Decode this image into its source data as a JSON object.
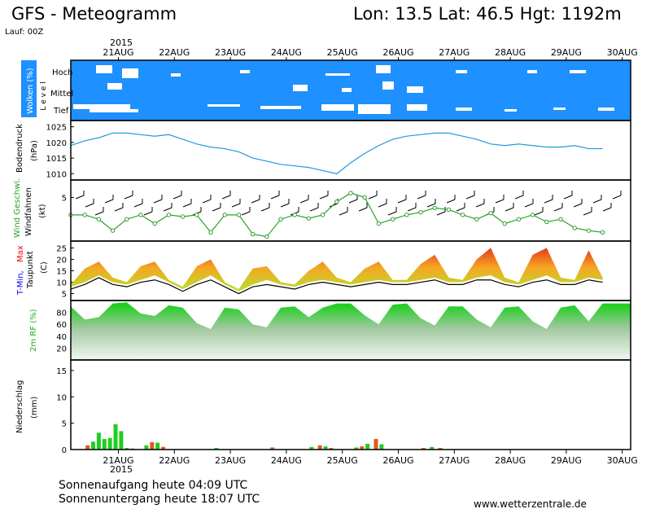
{
  "header": {
    "title": "GFS - Meteogramm",
    "location": "Lon: 13.5  Lat: 46.5  Hgt: 1192m",
    "run": "Lauf: 00Z"
  },
  "timeline": {
    "year": "2015",
    "dates": [
      "21AUG",
      "22AUG",
      "23AUG",
      "24AUG",
      "25AUG",
      "26AUG",
      "27AUG",
      "28AUG",
      "29AUG",
      "30AUG"
    ]
  },
  "panels": {
    "clouds": {
      "ylabel": "Wolken (%)",
      "level_word": "L e v e l",
      "levels": [
        "Hoch",
        "Mittel",
        "Tief"
      ],
      "color": "#1e90ff"
    },
    "pressure": {
      "ylabel1": "Bodendruck",
      "ylabel2": "(hPa)",
      "ticks": [
        "1025",
        "1020",
        "1015",
        "1010"
      ],
      "color": "#1e9bd8"
    },
    "wind": {
      "ylabel_a": "Wind Geschwi.",
      "ylabel_b": "Windfahnen",
      "ylabel_c": "(kt)",
      "ticks": [
        "5"
      ],
      "color": "#2ca02c"
    },
    "temp": {
      "ylabel_min": "T-Min,",
      "ylabel_max": "Max",
      "ylabel_b": "Taupunkt",
      "ylabel_c": "(C)",
      "ticks": [
        "25",
        "20",
        "15",
        "10",
        "5"
      ]
    },
    "rh": {
      "ylabel": "2m RF (%)",
      "ticks": [
        "80",
        "60",
        "40",
        "20"
      ],
      "color": "#22cc22"
    },
    "precip": {
      "ylabel1": "Niederschlag",
      "ylabel2": "(mm)",
      "ticks": [
        "15",
        "10",
        "5",
        "0"
      ]
    }
  },
  "footer": {
    "sunrise": "Sonnenaufgang heute 04:09 UTC",
    "sunset": "Sonnenuntergang heute 18:07 UTC",
    "website": "www.wetterzentrale.de"
  },
  "chart_data": [
    {
      "type": "line",
      "name": "pressure",
      "ylim": [
        1008,
        1027
      ],
      "x_days": [
        0,
        0.25,
        0.5,
        0.75,
        1,
        1.25,
        1.5,
        1.75,
        2,
        2.25,
        2.5,
        2.75,
        3,
        3.25,
        3.5,
        3.75,
        4,
        4.25,
        4.5,
        4.75,
        5,
        5.25,
        5.5,
        5.75,
        6,
        6.25,
        6.5,
        6.75,
        7,
        7.25,
        7.5,
        7.75,
        8,
        8.25,
        8.5,
        8.75,
        9,
        9.25,
        9.5
      ],
      "values": [
        1019,
        1020.5,
        1021.5,
        1023,
        1023,
        1022.5,
        1022,
        1022.5,
        1021,
        1019.5,
        1018.5,
        1018,
        1017,
        1015,
        1014,
        1013,
        1012.5,
        1012,
        1011,
        1010,
        1013.5,
        1016.5,
        1019,
        1021,
        1022,
        1022.5,
        1023,
        1023,
        1022,
        1021,
        1019.5,
        1019,
        1019.5,
        1019,
        1018.5,
        1018.5,
        1019,
        1018,
        1018
      ]
    },
    {
      "type": "line",
      "name": "wind speed",
      "ylim": [
        0,
        7
      ],
      "x_days": [
        0,
        0.25,
        0.5,
        0.75,
        1,
        1.25,
        1.5,
        1.75,
        2,
        2.25,
        2.5,
        2.75,
        3,
        3.25,
        3.5,
        3.75,
        4,
        4.25,
        4.5,
        4.75,
        5,
        5.25,
        5.5,
        5.75,
        6,
        6.25,
        6.5,
        6.75,
        7,
        7.25,
        7.5,
        7.75,
        8,
        8.25,
        8.5,
        8.75,
        9,
        9.25,
        9.5
      ],
      "values": [
        3,
        3,
        2.5,
        1.2,
        2.5,
        3,
        2,
        3,
        2.8,
        3,
        1,
        3,
        3,
        0.8,
        0.5,
        2.5,
        3,
        2.6,
        3,
        4.5,
        5.5,
        5,
        2,
        2.5,
        3,
        3.3,
        3.8,
        3.6,
        3,
        2.5,
        3.2,
        2,
        2.5,
        3,
        2.2,
        2.5,
        1.5,
        1.2,
        1
      ]
    },
    {
      "type": "area",
      "name": "temperature",
      "ylim": [
        2,
        28
      ],
      "x_days": [
        0,
        0.25,
        0.5,
        0.75,
        1,
        1.25,
        1.5,
        1.75,
        2,
        2.25,
        2.5,
        2.75,
        3,
        3.25,
        3.5,
        3.75,
        4,
        4.25,
        4.5,
        4.75,
        5,
        5.25,
        5.5,
        5.75,
        6,
        6.25,
        6.5,
        6.75,
        7,
        7.25,
        7.5,
        7.75,
        8,
        8.25,
        8.5,
        8.75,
        9,
        9.25,
        9.5
      ],
      "series": [
        {
          "name": "T-Min",
          "values": [
            8,
            10,
            13,
            10,
            9,
            11,
            13,
            10,
            7,
            10,
            13,
            9,
            6,
            9,
            11,
            9,
            8,
            10,
            11,
            10,
            9,
            10,
            11,
            10,
            10,
            11,
            12,
            10,
            10,
            12,
            13,
            10,
            9,
            11,
            13,
            10,
            10,
            12,
            11
          ]
        },
        {
          "name": "Max",
          "values": [
            9,
            16,
            19,
            12,
            10,
            17,
            19,
            11,
            8,
            17,
            20,
            10,
            7,
            16,
            17,
            10,
            9,
            15,
            19,
            12,
            10,
            16,
            19,
            11,
            11,
            18,
            22,
            12,
            11,
            20,
            25,
            12,
            10,
            22,
            25,
            12,
            11,
            24,
            12
          ]
        },
        {
          "name": "Taupunkt",
          "values": [
            7,
            9,
            12,
            9,
            8,
            10,
            11,
            9,
            6,
            9,
            11,
            8,
            5,
            8,
            9,
            8,
            7,
            9,
            10,
            9,
            8,
            9,
            10,
            9,
            9,
            10,
            11,
            9,
            9,
            11,
            11,
            9,
            8,
            10,
            11,
            9,
            9,
            11,
            10
          ]
        }
      ]
    },
    {
      "type": "area",
      "name": "relative humidity",
      "ylim": [
        0,
        100
      ],
      "x_days": [
        0,
        0.25,
        0.5,
        0.75,
        1,
        1.25,
        1.5,
        1.75,
        2,
        2.25,
        2.5,
        2.75,
        3,
        3.25,
        3.5,
        3.75,
        4,
        4.25,
        4.5,
        4.75,
        5,
        5.25,
        5.5,
        5.75,
        6,
        6.25,
        6.5,
        6.75,
        7,
        7.25,
        7.5,
        7.75,
        8,
        8.25,
        8.5,
        8.75,
        9,
        9.25,
        9.5
      ],
      "values": [
        90,
        68,
        72,
        95,
        97,
        78,
        74,
        92,
        88,
        62,
        52,
        88,
        85,
        60,
        55,
        88,
        90,
        72,
        88,
        95,
        95,
        75,
        60,
        93,
        95,
        70,
        58,
        90,
        90,
        68,
        55,
        88,
        90,
        65,
        52,
        88,
        92,
        65,
        95
      ]
    },
    {
      "type": "bar",
      "name": "precipitation",
      "ylim": [
        0,
        17
      ],
      "x_days": [
        0.3,
        0.4,
        0.5,
        0.6,
        0.7,
        0.8,
        0.9,
        1.0,
        1.1,
        1.35,
        1.45,
        1.55,
        1.65,
        2.6,
        3.6,
        4.3,
        4.45,
        4.55,
        4.65,
        5.1,
        5.2,
        5.3,
        5.45,
        5.55,
        6.3,
        6.45,
        6.6
      ],
      "values": [
        0.8,
        1.5,
        3.2,
        2.0,
        2.2,
        4.8,
        3.5,
        0.3,
        0.2,
        0.8,
        1.4,
        1.3,
        0.5,
        0.3,
        0.4,
        0.5,
        0.8,
        0.6,
        0.3,
        0.4,
        0.6,
        1.1,
        2.0,
        1.0,
        0.3,
        0.5,
        0.3
      ]
    }
  ]
}
